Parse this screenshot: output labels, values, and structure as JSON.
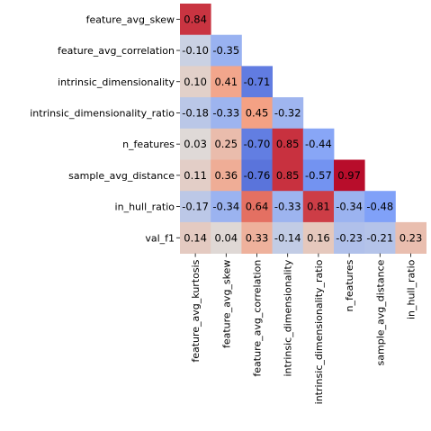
{
  "chart_data": {
    "type": "heatmap",
    "title": "",
    "xlabel": "",
    "ylabel": "",
    "mask": "lower-triangle",
    "colormap": "coolwarm",
    "value_range": [
      -1,
      1
    ],
    "row_labels": [
      "feature_avg_skew",
      "feature_avg_correlation",
      "intrinsic_dimensionality",
      "intrinsic_dimensionality_ratio",
      "n_features",
      "sample_avg_distance",
      "in_hull_ratio",
      "val_f1"
    ],
    "col_labels": [
      "feature_avg_kurtosis",
      "feature_avg_skew",
      "feature_avg_correlation",
      "intrinsic_dimensionality",
      "intrinsic_dimensionality_ratio",
      "n_features",
      "sample_avg_distance",
      "in_hull_ratio"
    ],
    "values": [
      [
        0.84
      ],
      [
        -0.1,
        -0.35
      ],
      [
        0.1,
        0.41,
        -0.71
      ],
      [
        -0.18,
        -0.33,
        0.45,
        -0.32
      ],
      [
        0.03,
        0.25,
        -0.7,
        0.85,
        -0.44
      ],
      [
        0.11,
        0.36,
        -0.76,
        0.85,
        -0.57,
        0.97
      ],
      [
        -0.17,
        -0.34,
        0.64,
        -0.33,
        0.81,
        -0.34,
        -0.48
      ],
      [
        0.14,
        0.04,
        0.33,
        -0.14,
        0.16,
        -0.23,
        -0.21,
        0.23
      ]
    ],
    "value_labels": [
      [
        "0.84"
      ],
      [
        "-0.10",
        "-0.35"
      ],
      [
        "0.10",
        "0.41",
        "-0.71"
      ],
      [
        "-0.18",
        "-0.33",
        "0.45",
        "-0.32"
      ],
      [
        "0.03",
        "0.25",
        "-0.70",
        "0.85",
        "-0.44"
      ],
      [
        "0.11",
        "0.36",
        "-0.76",
        "0.85",
        "-0.57",
        "0.97"
      ],
      [
        "-0.17",
        "-0.34",
        "0.64",
        "-0.33",
        "0.81",
        "-0.34",
        "-0.48"
      ],
      [
        "0.14",
        "0.04",
        "0.33",
        "-0.14",
        "0.16",
        "-0.23",
        "-0.21",
        "0.23"
      ]
    ]
  }
}
